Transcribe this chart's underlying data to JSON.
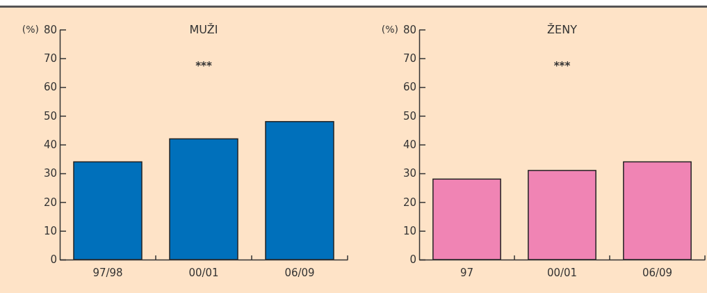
{
  "chart_data": [
    {
      "type": "bar",
      "title": "MUŽI",
      "ylabel": "(%)",
      "categories": [
        "97/98",
        "00/01",
        "06/09"
      ],
      "values": [
        34,
        42,
        48
      ],
      "color": "#0070bb",
      "ylim": [
        0,
        80
      ],
      "yticks": [
        0,
        10,
        20,
        30,
        40,
        50,
        60,
        70,
        80
      ],
      "annotations": [
        "***"
      ]
    },
    {
      "type": "bar",
      "title": "ŽENY",
      "ylabel": "(%)",
      "categories": [
        "97",
        "00/01",
        "06/09"
      ],
      "values": [
        28,
        31,
        34
      ],
      "color": "#f084b4",
      "ylim": [
        0,
        80
      ],
      "yticks": [
        0,
        10,
        20,
        30,
        40,
        50,
        60,
        70,
        80
      ],
      "annotations": [
        "***"
      ]
    }
  ]
}
